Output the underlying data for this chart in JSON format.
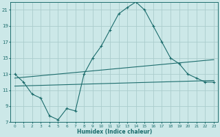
{
  "xlabel": "Humidex (Indice chaleur)",
  "bg_color": "#cce8e8",
  "grid_color": "#aacccc",
  "line_color": "#1a6b6b",
  "xlim": [
    -0.5,
    23.5
  ],
  "ylim": [
    7,
    22
  ],
  "xticks": [
    0,
    1,
    2,
    3,
    4,
    5,
    6,
    7,
    8,
    9,
    10,
    11,
    12,
    13,
    14,
    15,
    16,
    17,
    18,
    19,
    20,
    21,
    22,
    23
  ],
  "yticks": [
    7,
    9,
    11,
    13,
    15,
    17,
    19,
    21
  ],
  "main_line_x": [
    0,
    1,
    2,
    3,
    4,
    5,
    6,
    7,
    8,
    9,
    10,
    11,
    12,
    13,
    14,
    15,
    16,
    17,
    18,
    19,
    20,
    21,
    22,
    23
  ],
  "main_line_y": [
    13,
    12,
    10.5,
    10.0,
    7.8,
    7.3,
    8.7,
    8.4,
    13.0,
    15.0,
    16.5,
    18.5,
    20.5,
    21.3,
    22.0,
    21.0,
    19.0,
    17.0,
    15.0,
    14.3,
    13.0,
    12.5,
    12.0,
    12.0
  ],
  "trend1_x": [
    0,
    23
  ],
  "trend1_y": [
    12.5,
    14.8
  ],
  "trend2_x": [
    0,
    23
  ],
  "trend2_y": [
    11.5,
    12.2
  ]
}
